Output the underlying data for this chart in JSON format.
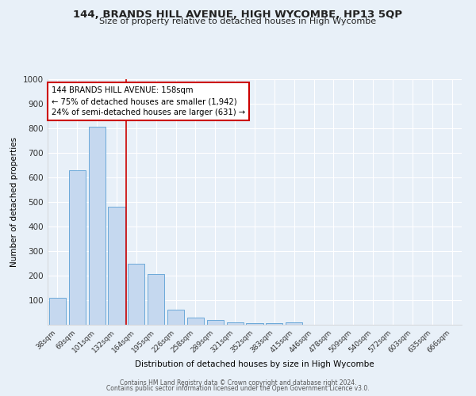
{
  "title": "144, BRANDS HILL AVENUE, HIGH WYCOMBE, HP13 5QP",
  "subtitle": "Size of property relative to detached houses in High Wycombe",
  "xlabel": "Distribution of detached houses by size in High Wycombe",
  "ylabel": "Number of detached properties",
  "bar_labels": [
    "38sqm",
    "69sqm",
    "101sqm",
    "132sqm",
    "164sqm",
    "195sqm",
    "226sqm",
    "258sqm",
    "289sqm",
    "321sqm",
    "352sqm",
    "383sqm",
    "415sqm",
    "446sqm",
    "478sqm",
    "509sqm",
    "540sqm",
    "572sqm",
    "603sqm",
    "635sqm",
    "666sqm"
  ],
  "bar_values": [
    110,
    630,
    805,
    480,
    250,
    205,
    62,
    28,
    18,
    10,
    8,
    8,
    10,
    0,
    0,
    0,
    0,
    0,
    0,
    0,
    0
  ],
  "bar_color": "#c5d8ef",
  "bar_edge_color": "#5a9fd4",
  "background_color": "#e8f0f8",
  "grid_color": "#ffffff",
  "red_line_x": 3.5,
  "annotation_text": "144 BRANDS HILL AVENUE: 158sqm\n← 75% of detached houses are smaller (1,942)\n24% of semi-detached houses are larger (631) →",
  "annotation_box_color": "#ffffff",
  "annotation_box_edge": "#cc0000",
  "ylim": [
    0,
    1000
  ],
  "yticks": [
    0,
    100,
    200,
    300,
    400,
    500,
    600,
    700,
    800,
    900,
    1000
  ],
  "footer_line1": "Contains HM Land Registry data © Crown copyright and database right 2024.",
  "footer_line2": "Contains public sector information licensed under the Open Government Licence v3.0."
}
